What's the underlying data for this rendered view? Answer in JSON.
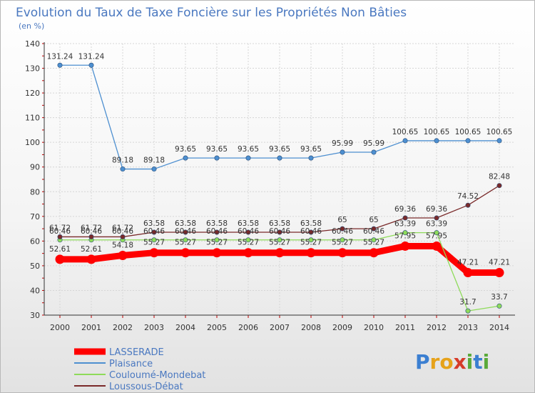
{
  "chart_data": {
    "type": "line",
    "title": "Evolution du Taux de Taxe Foncière sur les Propriétés Non Bâties",
    "subtitle": "(en %)",
    "ylim": [
      30,
      140
    ],
    "yticks": [
      "30",
      "40",
      "50",
      "60",
      "70",
      "80",
      "90",
      "100",
      "110",
      "120",
      "130",
      "140"
    ],
    "categories": [
      "2000",
      "2001",
      "2002",
      "2003",
      "2004",
      "2005",
      "2006",
      "2007",
      "2008",
      "2009",
      "2010",
      "2011",
      "2012",
      "2013",
      "2014"
    ],
    "grid": true,
    "series": [
      {
        "name": "LASSERADE",
        "color": "#ff0000",
        "values": [
          52.61,
          52.61,
          54.18,
          55.27,
          55.27,
          55.27,
          55.27,
          55.27,
          55.27,
          55.27,
          55.27,
          57.95,
          57.95,
          47.21,
          47.21
        ],
        "labels": [
          "52.61",
          "52.61",
          "54.18",
          "55.27",
          "55.27",
          "55.27",
          "55.27",
          "55.27",
          "55.27",
          "55.27",
          "55.27",
          "57.95",
          "57.95",
          "47.21",
          "47.21"
        ]
      },
      {
        "name": "Plaisance",
        "color": "#4d8fd0",
        "values": [
          131.24,
          131.24,
          89.18,
          89.18,
          93.65,
          93.65,
          93.65,
          93.65,
          93.65,
          95.99,
          95.99,
          100.65,
          100.65,
          100.65,
          100.65
        ],
        "labels": [
          "131.24",
          "131.24",
          "89.18",
          "89.18",
          "93.65",
          "93.65",
          "93.65",
          "93.65",
          "93.65",
          "95.99",
          "95.99",
          "100.65",
          "100.65",
          "100.65",
          "100.65"
        ]
      },
      {
        "name": "Couloumé-Mondebat",
        "color": "#8edb5a",
        "values": [
          60.46,
          60.46,
          60.46,
          60.46,
          60.46,
          60.46,
          60.46,
          60.46,
          60.46,
          60.46,
          60.46,
          63.39,
          63.39,
          31.7,
          33.7
        ],
        "labels": [
          "60.46",
          "60.46",
          "60.46",
          "60.46",
          "60.46",
          "60.46",
          "60.46",
          "60.46",
          "60.46",
          "60.46",
          "60.46",
          "63.39",
          "63.39",
          "31.7",
          "33.7"
        ]
      },
      {
        "name": "Loussous-Débat",
        "color": "#7a2a2a",
        "values": [
          61.72,
          61.72,
          61.72,
          63.58,
          63.58,
          63.58,
          63.58,
          63.58,
          63.58,
          65,
          65,
          69.36,
          69.36,
          74.52,
          82.48
        ],
        "labels": [
          "61.72",
          "61.72",
          "61.72",
          "63.58",
          "63.58",
          "63.58",
          "63.58",
          "63.58",
          "63.58",
          "65",
          "65",
          "69.36",
          "69.36",
          "74.52",
          "82.48"
        ]
      }
    ]
  },
  "logo": {
    "text": "Proxiti",
    "letters": [
      "P",
      "r",
      "o",
      "x",
      "i",
      "t",
      "i"
    ]
  }
}
